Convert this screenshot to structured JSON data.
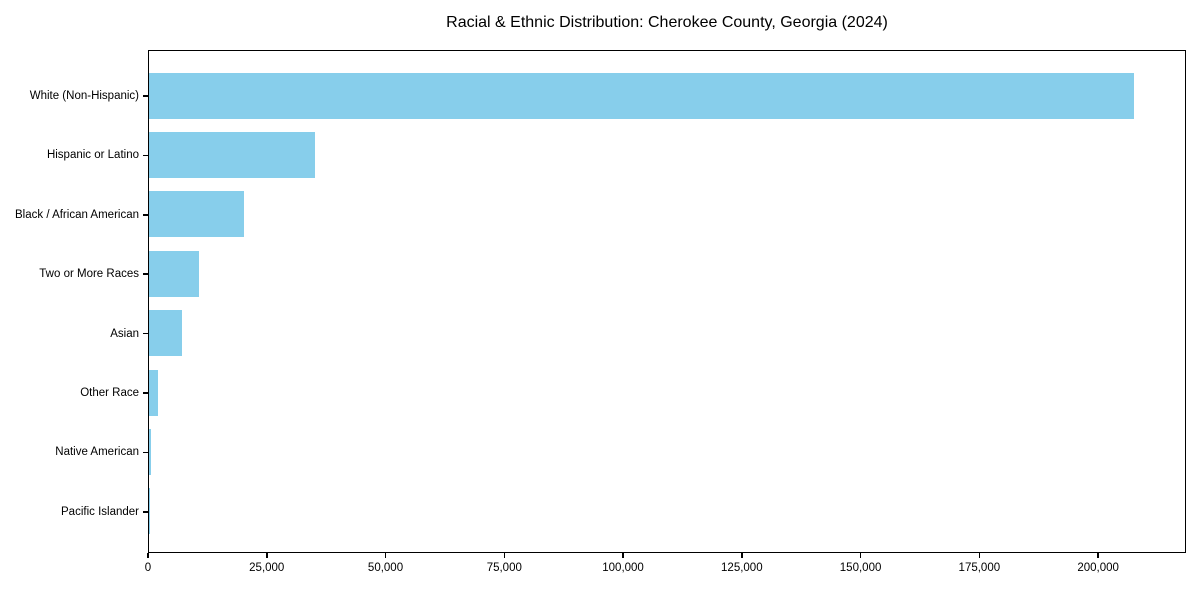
{
  "chart_data": {
    "type": "bar",
    "orientation": "horizontal",
    "title": "Racial & Ethnic Distribution: Cherokee County, Georgia (2024)",
    "categories": [
      "White (Non-Hispanic)",
      "Hispanic or Latino",
      "Black / African American",
      "Two or More Races",
      "Asian",
      "Other Race",
      "Native American",
      "Pacific Islander"
    ],
    "values": [
      208000,
      35000,
      20000,
      10500,
      7000,
      2000,
      400,
      150
    ],
    "xlabel": "",
    "ylabel": "",
    "xlim": [
      0,
      218500
    ],
    "xticks": [
      0,
      25000,
      50000,
      75000,
      100000,
      125000,
      150000,
      175000,
      200000
    ],
    "xtick_labels": [
      "0",
      "25,000",
      "50,000",
      "75,000",
      "100,000",
      "125,000",
      "150,000",
      "175,000",
      "200,000"
    ],
    "bar_color": "#87CEEB",
    "grid": false,
    "legend": "none",
    "plot_border": "full-box"
  }
}
